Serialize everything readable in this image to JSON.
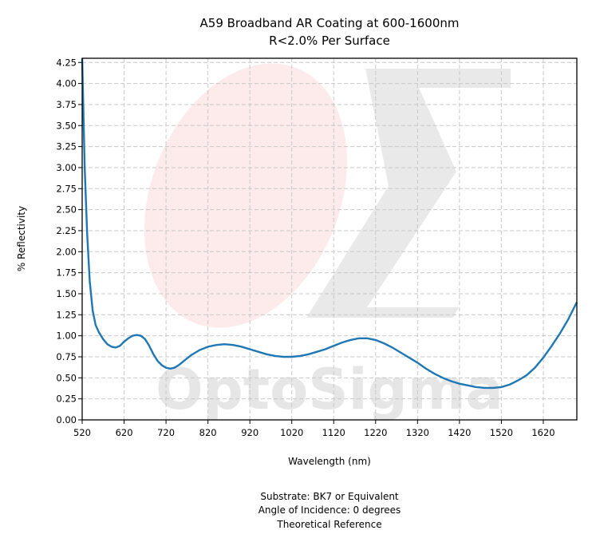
{
  "chart_data": {
    "type": "line",
    "title_line1": "A59 Broadband AR Coating at 600-1600nm",
    "title_line2": "R<2.0% Per Surface",
    "xlabel": "Wavelength (nm)",
    "ylabel": "% Reflectivity",
    "xlim": [
      520,
      1700
    ],
    "ylim": [
      0,
      4.3
    ],
    "x_ticks": [
      520,
      620,
      720,
      820,
      920,
      1020,
      1120,
      1220,
      1320,
      1420,
      1520,
      1620
    ],
    "y_ticks": [
      "0.00",
      "0.25",
      "0.50",
      "0.75",
      "1.00",
      "1.25",
      "1.50",
      "1.75",
      "2.00",
      "2.25",
      "2.50",
      "2.75",
      "3.00",
      "3.25",
      "3.50",
      "3.75",
      "4.00",
      "4.25"
    ],
    "grid": true,
    "line_color": "#1f77b4",
    "series": [
      {
        "x": [
          520,
          526,
          532,
          538,
          545,
          552,
          560,
          570,
          580,
          590,
          600,
          610,
          620,
          630,
          640,
          650,
          660,
          670,
          680,
          690,
          700,
          710,
          720,
          730,
          740,
          750,
          760,
          770,
          780,
          790,
          800,
          820,
          840,
          860,
          880,
          900,
          920,
          940,
          960,
          980,
          1000,
          1020,
          1040,
          1060,
          1080,
          1100,
          1120,
          1140,
          1160,
          1180,
          1200,
          1220,
          1240,
          1260,
          1280,
          1300,
          1320,
          1340,
          1360,
          1380,
          1400,
          1420,
          1440,
          1460,
          1480,
          1500,
          1520,
          1540,
          1560,
          1580,
          1600,
          1620,
          1640,
          1660,
          1680,
          1700
        ],
        "y": [
          4.3,
          3.0,
          2.2,
          1.65,
          1.3,
          1.13,
          1.04,
          0.96,
          0.9,
          0.87,
          0.86,
          0.88,
          0.93,
          0.97,
          1.0,
          1.01,
          1.0,
          0.96,
          0.88,
          0.78,
          0.7,
          0.65,
          0.62,
          0.61,
          0.62,
          0.65,
          0.69,
          0.73,
          0.77,
          0.8,
          0.83,
          0.87,
          0.89,
          0.9,
          0.89,
          0.87,
          0.84,
          0.81,
          0.78,
          0.76,
          0.75,
          0.75,
          0.76,
          0.78,
          0.81,
          0.84,
          0.88,
          0.92,
          0.95,
          0.97,
          0.97,
          0.95,
          0.91,
          0.86,
          0.8,
          0.74,
          0.68,
          0.61,
          0.55,
          0.5,
          0.46,
          0.43,
          0.41,
          0.39,
          0.38,
          0.38,
          0.39,
          0.42,
          0.47,
          0.53,
          0.62,
          0.74,
          0.88,
          1.03,
          1.2,
          1.4
        ]
      }
    ]
  },
  "footer": {
    "line1": "Substrate: BK7 or Equivalent",
    "line2": "Angle of Incidence: 0 degrees",
    "line3": "Theoretical Reference"
  },
  "watermark": {
    "text": "OptoSigma"
  }
}
